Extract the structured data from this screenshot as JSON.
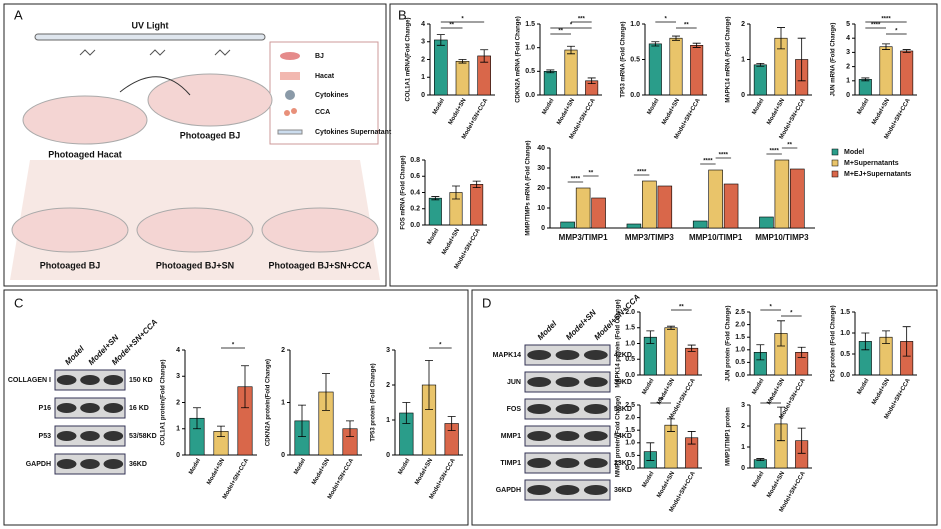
{
  "panels": {
    "a": {
      "letter": "A",
      "uv": "UV Light",
      "legend": [
        "BJ",
        "Hacat",
        "Cytokines",
        "CCA",
        "Cytokines Supernatant"
      ],
      "dishes": [
        "Photoaged Hacat",
        "Photoaged BJ",
        "Photoaged BJ",
        "Photoaged BJ+SN",
        "Photoaged BJ+SN+CCA"
      ]
    },
    "b": {
      "letter": "B"
    },
    "c": {
      "letter": "C",
      "lanes": [
        "Model",
        "Model+SN",
        "Model+SN+CCA"
      ],
      "rows": [
        {
          "name": "COLLAGEN I",
          "size": "150 KD"
        },
        {
          "name": "P16",
          "size": "16 KD"
        },
        {
          "name": "P53",
          "size": "53/58KD"
        },
        {
          "name": "GAPDH",
          "size": "36KD"
        }
      ]
    },
    "d": {
      "letter": "D",
      "lanes": [
        "Model",
        "Model+SN",
        "Model+SN+CCA"
      ],
      "rows": [
        {
          "name": "MAPK14",
          "size": "42KD"
        },
        {
          "name": "JUN",
          "size": "39KD"
        },
        {
          "name": "FOS",
          "size": "58KD"
        },
        {
          "name": "MMP1",
          "size": "54KD"
        },
        {
          "name": "TIMP1",
          "size": "23KD"
        },
        {
          "name": "GAPDH",
          "size": "36KD"
        }
      ]
    }
  },
  "chart_data": [
    {
      "type": "bar",
      "ylabel": "COL1A1 mRNA(Fold Change)",
      "categories": [
        "Model",
        "Model+SN",
        "Model+SN+CCA"
      ],
      "values": [
        3.1,
        1.9,
        2.2
      ],
      "errors": [
        0.3,
        0.1,
        0.35
      ],
      "colors": [
        "#2a9d8a",
        "#e9c46a",
        "#d9674a"
      ],
      "ylim": [
        0,
        4
      ],
      "yticks": [
        0,
        1,
        2,
        3,
        4
      ],
      "annotations": [
        {
          "text": "*",
          "from": 0,
          "to": 2
        },
        {
          "text": "**",
          "from": 0,
          "to": 1
        }
      ]
    },
    {
      "type": "bar",
      "ylabel": "CDKN2A mRNA (Fold Change)",
      "categories": [
        "Model",
        "Model+SN",
        "Model+SN+CCA"
      ],
      "values": [
        0.5,
        0.95,
        0.3
      ],
      "errors": [
        0.03,
        0.08,
        0.06
      ],
      "colors": [
        "#2a9d8a",
        "#e9c46a",
        "#d9674a"
      ],
      "ylim": [
        0,
        1.5
      ],
      "yticks": [
        {
          "value": 0,
          "label": "0.0"
        },
        0.5,
        {
          "value": 1,
          "label": "1.0"
        },
        1.5
      ],
      "annotations": [
        {
          "text": "***",
          "from": 1,
          "to": 2
        },
        {
          "text": "*",
          "from": 0,
          "to": 2
        },
        {
          "text": "**",
          "from": 0,
          "to": 1
        }
      ]
    },
    {
      "type": "bar",
      "ylabel": "TP53 mRNA (Fold Change)",
      "categories": [
        "Model",
        "Model+SN",
        "Model+SN+CCA"
      ],
      "values": [
        0.72,
        0.8,
        0.7
      ],
      "errors": [
        0.03,
        0.03,
        0.03
      ],
      "colors": [
        "#2a9d8a",
        "#e9c46a",
        "#d9674a"
      ],
      "ylim": [
        0,
        1
      ],
      "yticks": [
        {
          "value": 0,
          "label": "0.0"
        },
        0.5,
        {
          "value": 1,
          "label": "1.0"
        }
      ],
      "annotations": [
        {
          "text": "*",
          "from": 0,
          "to": 1
        },
        {
          "text": "**",
          "from": 1,
          "to": 2
        }
      ]
    },
    {
      "type": "bar",
      "ylabel": "MAPK14 mRNA (Fold Change)",
      "categories": [
        "Model",
        "Model+SN",
        "Model+SN+CCA"
      ],
      "values": [
        0.85,
        1.6,
        1.0
      ],
      "errors": [
        0.04,
        0.3,
        0.6
      ],
      "colors": [
        "#2a9d8a",
        "#e9c46a",
        "#d9674a"
      ],
      "ylim": [
        0,
        2
      ],
      "yticks": [
        0,
        1,
        2
      ],
      "annotations": []
    },
    {
      "type": "bar",
      "ylabel": "JUN mRNA (Fold Change)",
      "categories": [
        "Model",
        "Model+SN",
        "Model+SN+CCA"
      ],
      "values": [
        1.1,
        3.4,
        3.1
      ],
      "errors": [
        0.1,
        0.2,
        0.1
      ],
      "colors": [
        "#2a9d8a",
        "#e9c46a",
        "#d9674a"
      ],
      "ylim": [
        0,
        5
      ],
      "yticks": [
        0,
        1,
        2,
        3,
        4,
        5
      ],
      "annotations": [
        {
          "text": "****",
          "from": 0,
          "to": 2
        },
        {
          "text": "****",
          "from": 0,
          "to": 1
        },
        {
          "text": "*",
          "from": 1,
          "to": 2
        }
      ]
    },
    {
      "type": "bar",
      "ylabel": "FOS mRNA (Fold Change)",
      "categories": [
        "Model",
        "Model+SN",
        "Model+SN+CCA"
      ],
      "values": [
        0.33,
        0.4,
        0.5
      ],
      "errors": [
        0.02,
        0.08,
        0.04
      ],
      "colors": [
        "#2a9d8a",
        "#e9c46a",
        "#d9674a"
      ],
      "ylim": [
        0,
        0.8
      ],
      "yticks": [
        {
          "value": 0,
          "label": "0.0"
        },
        0.2,
        0.4,
        0.6,
        0.8
      ],
      "annotations": []
    },
    {
      "type": "grouped_bar",
      "ylabel": "MMP/TIMPs mRNA (Fold Change)",
      "categories": [
        "MMP3/TIMP1",
        "MMP3/TIMP3",
        "MMP10/TIMP1",
        "MMP10/TIMP3"
      ],
      "series": [
        {
          "name": "Model",
          "color": "#2a9d8a",
          "values": [
            3,
            2,
            3.5,
            5.5
          ]
        },
        {
          "name": "M+Supernatants",
          "color": "#e9c46a",
          "values": [
            20,
            23.5,
            29,
            34
          ]
        },
        {
          "name": "M+EJ+Supernatants",
          "color": "#d9674a",
          "values": [
            15,
            21,
            22,
            29.5
          ]
        }
      ],
      "ylim": [
        0,
        40
      ],
      "yticks": [
        0,
        10,
        20,
        30,
        40
      ],
      "annotations": [
        {
          "text": "****",
          "group": 0,
          "from": 0,
          "to": 1
        },
        {
          "text": "**",
          "group": 0,
          "from": 1,
          "to": 2
        },
        {
          "text": "****",
          "group": 1,
          "from": 0,
          "to": 1
        },
        {
          "text": "****",
          "group": 2,
          "from": 0,
          "to": 1
        },
        {
          "text": "****",
          "group": 2,
          "from": 1,
          "to": 2
        },
        {
          "text": "****",
          "group": 3,
          "from": 0,
          "to": 1
        },
        {
          "text": "**",
          "group": 3,
          "from": 1,
          "to": 2
        }
      ]
    },
    {
      "type": "bar",
      "ylabel": "COL1A1 protein(Fold Change)",
      "categories": [
        "Model",
        "Model+SN",
        "Model+SN+CCA"
      ],
      "values": [
        1.4,
        0.9,
        2.6
      ],
      "errors": [
        0.4,
        0.2,
        0.8
      ],
      "colors": [
        "#2a9d8a",
        "#e9c46a",
        "#d9674a"
      ],
      "ylim": [
        0,
        4
      ],
      "yticks": [
        0,
        1,
        2,
        3,
        4
      ],
      "annotations": [
        {
          "text": "*",
          "from": 1,
          "to": 2
        }
      ]
    },
    {
      "type": "bar",
      "ylabel": "CDKN2A protein(Fold Change)",
      "categories": [
        "Model",
        "Model+SN",
        "Model+SN+CCA"
      ],
      "values": [
        0.65,
        1.2,
        0.5
      ],
      "errors": [
        0.3,
        0.35,
        0.15
      ],
      "colors": [
        "#2a9d8a",
        "#e9c46a",
        "#d9674a"
      ],
      "ylim": [
        0,
        2
      ],
      "yticks": [
        0,
        1,
        2
      ],
      "annotations": []
    },
    {
      "type": "bar",
      "ylabel": "TP53 protein (Fold Change)",
      "categories": [
        "Model",
        "Model+SN",
        "Model+SN+CCA"
      ],
      "values": [
        1.2,
        2.0,
        0.9
      ],
      "errors": [
        0.3,
        0.7,
        0.2
      ],
      "colors": [
        "#2a9d8a",
        "#e9c46a",
        "#d9674a"
      ],
      "ylim": [
        0,
        3
      ],
      "yticks": [
        0,
        1,
        2,
        3
      ],
      "annotations": [
        {
          "text": "*",
          "from": 1,
          "to": 2
        }
      ]
    },
    {
      "type": "bar",
      "ylabel": "MAPK14 protein (Fold Change)",
      "categories": [
        "Model",
        "Model+SN",
        "Model+SN+CCA"
      ],
      "values": [
        1.2,
        1.5,
        0.85
      ],
      "errors": [
        0.2,
        0.05,
        0.1
      ],
      "colors": [
        "#2a9d8a",
        "#e9c46a",
        "#d9674a"
      ],
      "ylim": [
        0,
        2
      ],
      "yticks": [
        {
          "value": 0,
          "label": "0.0"
        },
        0.5,
        {
          "value": 1,
          "label": "1.0"
        },
        1.5,
        {
          "value": 2,
          "label": "2.0"
        }
      ],
      "annotations": [
        {
          "text": "**",
          "from": 1,
          "to": 2
        }
      ]
    },
    {
      "type": "bar",
      "ylabel": "JUN protein (Fold Change)",
      "categories": [
        "Model",
        "Model+SN",
        "Model+SN+CCA"
      ],
      "values": [
        0.9,
        1.65,
        0.9
      ],
      "errors": [
        0.3,
        0.5,
        0.2
      ],
      "colors": [
        "#2a9d8a",
        "#e9c46a",
        "#d9674a"
      ],
      "ylim": [
        0,
        2.5
      ],
      "yticks": [
        {
          "value": 0,
          "label": "0.0"
        },
        0.5,
        {
          "value": 1,
          "label": "1.0"
        },
        1.5,
        {
          "value": 2,
          "label": "2.0"
        },
        2.5
      ],
      "annotations": [
        {
          "text": "*",
          "from": 0,
          "to": 1
        },
        {
          "text": "*",
          "from": 1,
          "to": 2
        }
      ]
    },
    {
      "type": "bar",
      "ylabel": "FOS protein (Fold Change)",
      "categories": [
        "Model",
        "Model+SN",
        "Model+SN+CCA"
      ],
      "values": [
        0.8,
        0.9,
        0.8
      ],
      "errors": [
        0.2,
        0.15,
        0.35
      ],
      "colors": [
        "#2a9d8a",
        "#e9c46a",
        "#d9674a"
      ],
      "ylim": [
        0,
        1.5
      ],
      "yticks": [
        {
          "value": 0,
          "label": "0.0"
        },
        0.5,
        {
          "value": 1,
          "label": "1.0"
        },
        1.5
      ],
      "annotations": []
    },
    {
      "type": "bar",
      "ylabel": "MMP1 protein (Fold Change)",
      "categories": [
        "Model",
        "Model+SN",
        "Model+SN+CCA"
      ],
      "values": [
        0.65,
        1.7,
        1.2
      ],
      "errors": [
        0.35,
        0.25,
        0.25
      ],
      "colors": [
        "#2a9d8a",
        "#e9c46a",
        "#d9674a"
      ],
      "ylim": [
        0,
        2.5
      ],
      "yticks": [
        {
          "value": 0,
          "label": "0.0"
        },
        0.5,
        {
          "value": 1,
          "label": "1.0"
        },
        1.5,
        {
          "value": 2,
          "label": "2.0"
        },
        2.5
      ],
      "annotations": [
        {
          "text": "**",
          "from": 0,
          "to": 1
        }
      ]
    },
    {
      "type": "bar",
      "ylabel": "MMP1/TIMP1 protein",
      "categories": [
        "Model",
        "Model+SN",
        "Model+SN+CCA"
      ],
      "values": [
        0.4,
        2.1,
        1.3
      ],
      "errors": [
        0.05,
        0.8,
        0.6
      ],
      "colors": [
        "#2a9d8a",
        "#e9c46a",
        "#d9674a"
      ],
      "ylim": [
        0,
        3
      ],
      "yticks": [
        0,
        1,
        2,
        3
      ],
      "annotations": [
        {
          "text": "*",
          "from": 0,
          "to": 1
        }
      ]
    }
  ]
}
